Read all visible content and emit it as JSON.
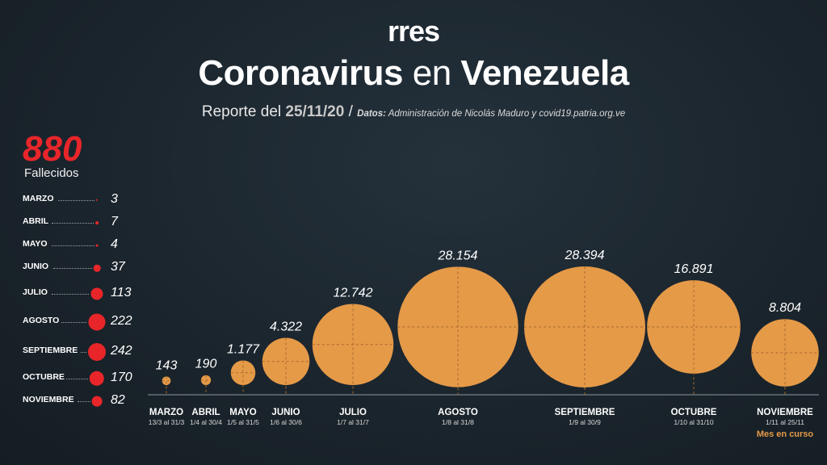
{
  "header": {
    "logo": "rres",
    "title_part1": "Coronavirus",
    "title_part2": "en",
    "title_part3": "Venezuela",
    "report_label": "Reporte del",
    "report_date": "25/11/20",
    "slash": "/",
    "source_label": "Datos:",
    "source_text": "Administración de Nicolás Maduro y covid19.patria.org.ve"
  },
  "deaths": {
    "total": "880",
    "label": "Fallecidos",
    "color": "#e8262a",
    "rows": [
      {
        "month": "MARZO",
        "value": 3
      },
      {
        "month": "ABRIL",
        "value": 7
      },
      {
        "month": "MAYO",
        "value": 4
      },
      {
        "month": "JUNIO",
        "value": 37
      },
      {
        "month": "JULIO",
        "value": 113
      },
      {
        "month": "AGOSTO",
        "value": 222
      },
      {
        "month": "SEPTIEMBRE",
        "value": 242
      },
      {
        "month": "OCTUBRE",
        "value": 170
      },
      {
        "month": "NOVIEMBRE",
        "value": 82
      }
    ]
  },
  "chart_data": {
    "type": "bubble",
    "color": "#e59a48",
    "categories": [
      "MARZO",
      "ABRIL",
      "MAYO",
      "JUNIO",
      "JULIO",
      "AGOSTO",
      "SEPTIEMBRE",
      "OCTUBRE",
      "NOVIEMBRE"
    ],
    "ranges": [
      "13/3 al 31/3",
      "1/4 al 30/4",
      "1/5 al 31/5",
      "1/6 al 30/6",
      "1/7 al 31/7",
      "1/8 al 31/8",
      "1/9 al 30/9",
      "1/10 al  31/10",
      "1/11 al 25/11"
    ],
    "values": [
      143,
      190,
      1177,
      4322,
      12742,
      28154,
      28394,
      16891,
      8804
    ],
    "value_labels": [
      "143",
      "190",
      "1.177",
      "4.322",
      "12.742",
      "28.154",
      "28.394",
      "16.891",
      "8.804"
    ],
    "note": "Mes en curso",
    "note_color": "#e59a48"
  }
}
